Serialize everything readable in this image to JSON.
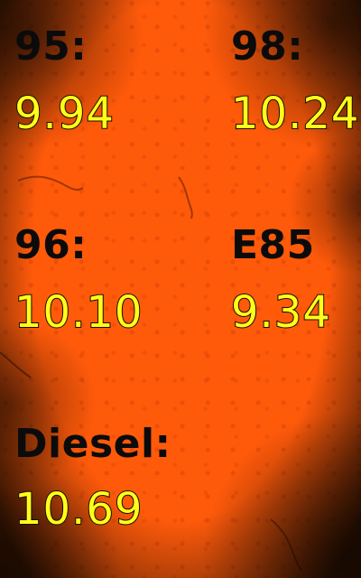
{
  "fuel_prices": {
    "items": [
      {
        "label": "95:",
        "price": "9.94"
      },
      {
        "label": "98:",
        "price": "10.24"
      },
      {
        "label": "96:",
        "price": "10.10"
      },
      {
        "label": "E85",
        "price": "9.34"
      },
      {
        "label": "Diesel:",
        "price": "10.69"
      }
    ]
  },
  "colors": {
    "background": "#ff5a0a",
    "label": "#0b0b0b",
    "price": "#ffff19",
    "price_outline": "#1a0d00"
  }
}
